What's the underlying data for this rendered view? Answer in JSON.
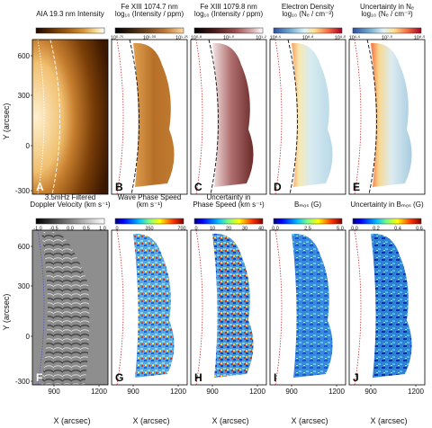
{
  "figure": {
    "xlabel": "X (arcsec)",
    "ylabel": "Y (arcsec)",
    "x_ticks": [
      "900",
      "1200"
    ],
    "y_ticks": [
      "600",
      "300",
      "0",
      "-300"
    ]
  },
  "chart_data": [
    {
      "panel": "A",
      "type": "heatmap",
      "title": [
        "AIA 19.3 nm Intensity"
      ],
      "colorbar": {
        "cmap": "sdo-aia-193",
        "ticks": []
      }
    },
    {
      "panel": "B",
      "type": "heatmap",
      "title": [
        "Fe XIII 1074.7 nm",
        "log₁₀ (Intensity / ppm)"
      ],
      "colorbar": {
        "cmap": "copper",
        "ticks": [
          "10⁰·⁷⁵",
          "10¹·⁰⁰",
          "10¹·²⁵"
        ]
      }
    },
    {
      "panel": "C",
      "type": "heatmap",
      "title": [
        "Fe XIII 1079.8 nm",
        "log₁₀ (Intensity / ppm)"
      ],
      "colorbar": {
        "cmap": "pink-bone",
        "ticks": [
          "10⁰·⁸",
          "10¹·⁰",
          "10¹·²"
        ]
      }
    },
    {
      "panel": "D",
      "type": "heatmap",
      "title": [
        "Electron Density",
        "log₁₀ (Nₑ / cm⁻³)"
      ],
      "colorbar": {
        "cmap": "rdylbu_r",
        "ticks": [
          "10⁸·⁶",
          "10⁸·⁸",
          "10⁹·⁰"
        ]
      }
    },
    {
      "panel": "E",
      "type": "heatmap",
      "title": [
        "Uncertainty in Nₑ",
        "log₁₀ (Nₑ / cm⁻³)"
      ],
      "colorbar": {
        "cmap": "rdylbu_r",
        "ticks": [
          "10⁶·⁶",
          "10⁷·⁰",
          "10⁸·⁰"
        ]
      }
    },
    {
      "panel": "F",
      "type": "heatmap",
      "title": [
        "3.5mHz Filtered",
        "Doppler Velocity (km s⁻¹)"
      ],
      "colorbar": {
        "cmap": "gray",
        "ticks": [
          "-1.0",
          "-0.5",
          "0.0",
          "0.5",
          "1.0"
        ]
      }
    },
    {
      "panel": "G",
      "type": "heatmap",
      "title": [
        "Wave Phase Speed",
        "(km s⁻¹)"
      ],
      "colorbar": {
        "cmap": "jet",
        "ticks": [
          "0",
          "350",
          "700"
        ]
      }
    },
    {
      "panel": "H",
      "type": "heatmap",
      "title": [
        "Uncertainty in",
        "Phase Speed (km s⁻¹)"
      ],
      "colorbar": {
        "cmap": "jet",
        "ticks": [
          "0",
          "10",
          "20",
          "30",
          "40"
        ]
      }
    },
    {
      "panel": "I",
      "type": "heatmap",
      "title": [
        "Bₘₒₛ (G)"
      ],
      "colorbar": {
        "cmap": "jet",
        "ticks": [
          "0.0",
          "2.5",
          "5.0"
        ]
      }
    },
    {
      "panel": "J",
      "type": "heatmap",
      "title": [
        "Uncertainty in Bₘₒₛ (G)"
      ],
      "colorbar": {
        "cmap": "jet",
        "ticks": [
          "0.0",
          "0.2",
          "0.4",
          "0.6"
        ]
      }
    }
  ],
  "colors": {
    "aia": [
      "#1a0800",
      "#5a2a00",
      "#9c5a10",
      "#d8983a",
      "#f8e0a0",
      "#ffffff"
    ],
    "copper": [
      "#000000",
      "#3a2410",
      "#7a4c20",
      "#b87a3a",
      "#e8a860",
      "#ffd8a0"
    ],
    "pink": [
      "#000000",
      "#3a1414",
      "#7a3a3a",
      "#b88080",
      "#e0c0c0",
      "#ffffff"
    ],
    "rdylbu_r": [
      "#2c4fa0",
      "#74add1",
      "#e0f3f8",
      "#fee090",
      "#f46d43",
      "#a50026"
    ],
    "gray": [
      "#000000",
      "#ffffff"
    ],
    "jet": [
      "#00007f",
      "#0000ff",
      "#007fff",
      "#00ffff",
      "#7fff7f",
      "#ffff00",
      "#ff7f00",
      "#ff0000",
      "#7f0000"
    ]
  }
}
